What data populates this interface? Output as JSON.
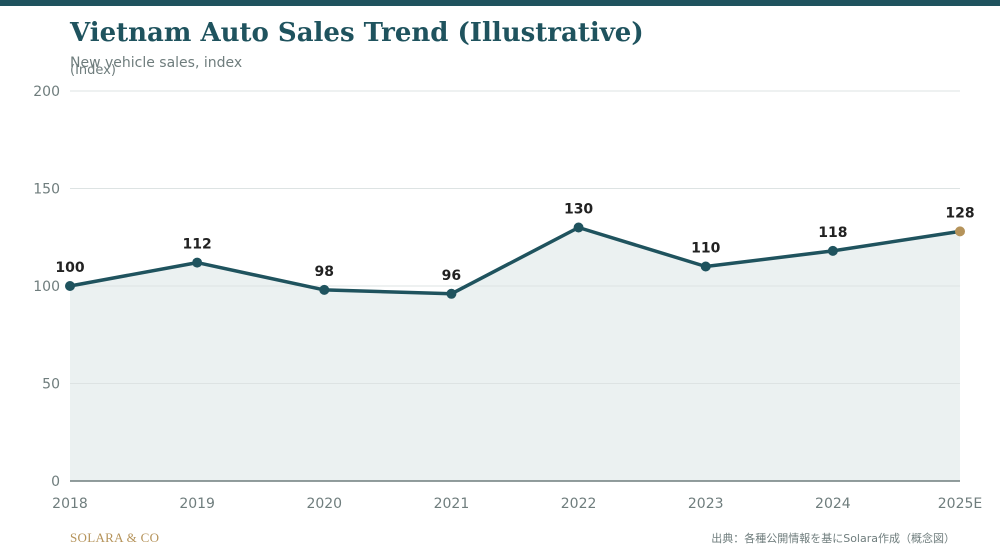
{
  "header": {
    "title": "Vietnam Auto Sales Trend (Illustrative)",
    "subtitle": "New vehicle sales, index"
  },
  "footer": {
    "brand": "SOLARA & CO",
    "source": "出典：各種公開情報を基にSolara作成（概念図）"
  },
  "colors": {
    "accent": "#1f535e",
    "highlight": "#b5935a",
    "area_fill": "#ebf1f1",
    "grid": "#dde3e3",
    "axis": "#6f7d7d",
    "label": "#222222",
    "tick_text": "#6f7d7d"
  },
  "chart_data": {
    "type": "line",
    "title": "Vietnam Auto Sales Trend (Illustrative)",
    "subtitle": "New vehicle sales, index",
    "ylabel": "(Index)",
    "xlabel": "",
    "categories": [
      "2018",
      "2019",
      "2020",
      "2021",
      "2022",
      "2023",
      "2024",
      "2025E"
    ],
    "series": [
      {
        "values": [
          100,
          112,
          98,
          96,
          130,
          110,
          118,
          128
        ],
        "data_labels": [
          "100",
          "112",
          "98",
          "96",
          "130",
          "110",
          "118",
          "128"
        ]
      }
    ],
    "estimate_index": 7,
    "ylim": [
      0,
      200
    ],
    "yticks": [
      0,
      50,
      100,
      150,
      200
    ],
    "ytick_labels": [
      "0",
      "50",
      "100",
      "150",
      "200"
    ],
    "grid": true,
    "area_fill": true,
    "legend": "none"
  }
}
